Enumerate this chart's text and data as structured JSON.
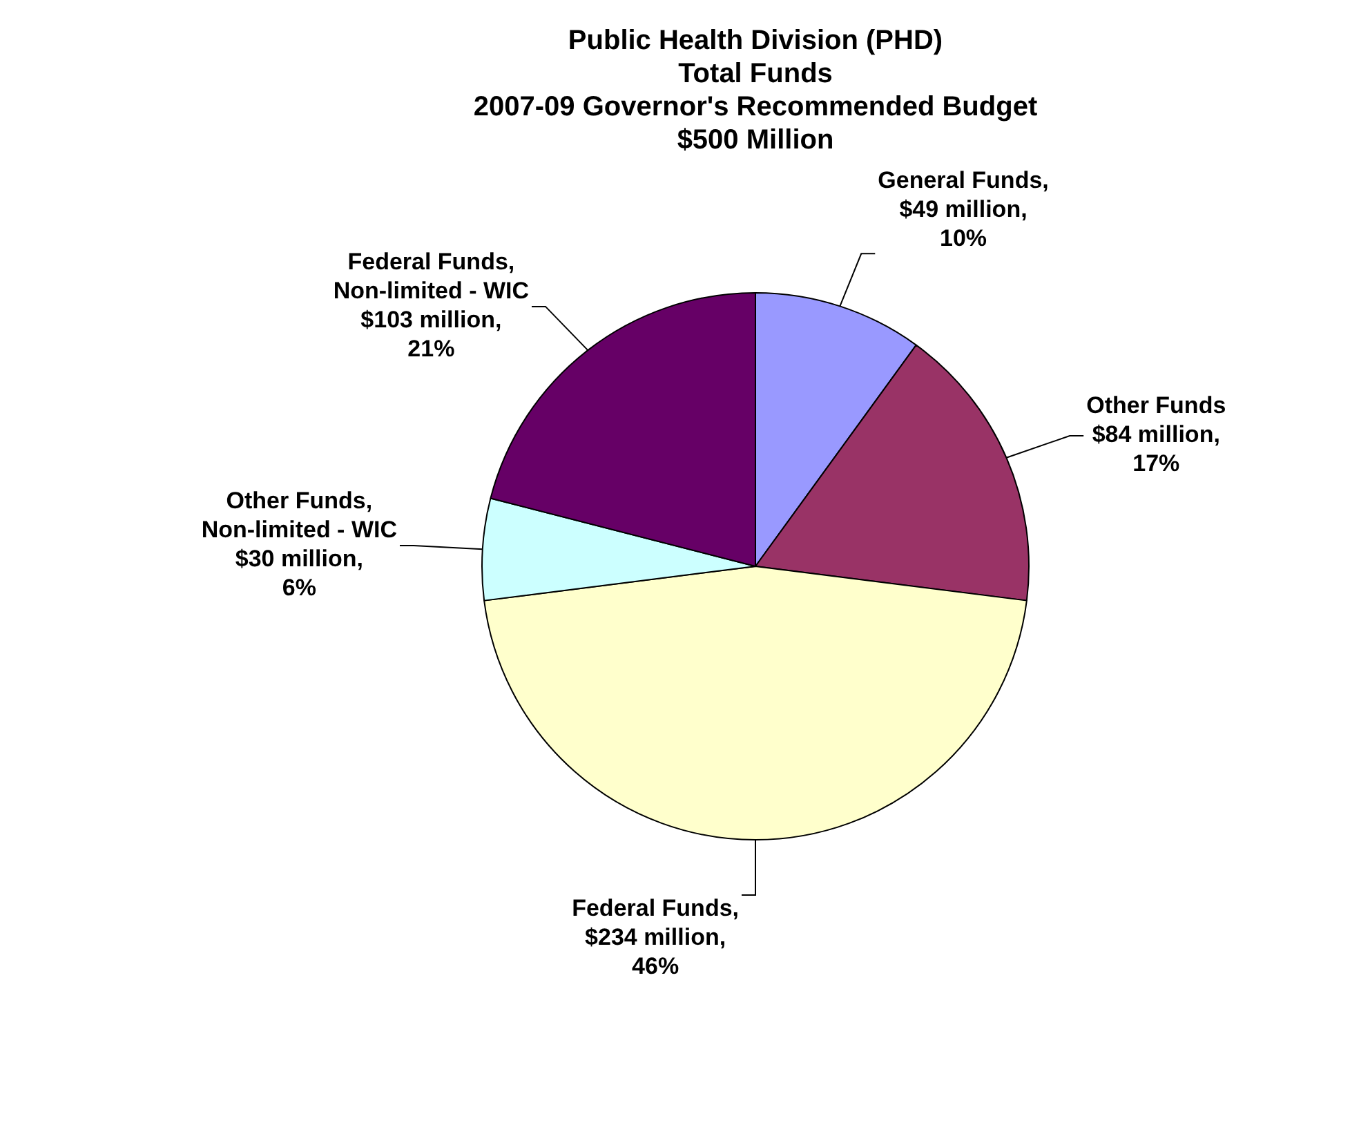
{
  "chart_data": {
    "type": "pie",
    "title": [
      "Public Health Division (PHD)",
      "Total Funds",
      "2007-09 Governor's Recommended Budget",
      "$500 Million"
    ],
    "categories": [
      "General Funds, $49 million, 10%",
      "Other Funds $84 million, 17%",
      "Federal Funds, $234 million, 46%",
      "Other Funds, Non-limited - WIC $30 million, 6%",
      "Federal Funds, Non-limited - WIC $103 million, 21%"
    ],
    "values": [
      10,
      17,
      46,
      6,
      21
    ],
    "colors": [
      "#9999ff",
      "#993366",
      "#ffffcc",
      "#ccffff",
      "#660066"
    ],
    "legend": false
  }
}
